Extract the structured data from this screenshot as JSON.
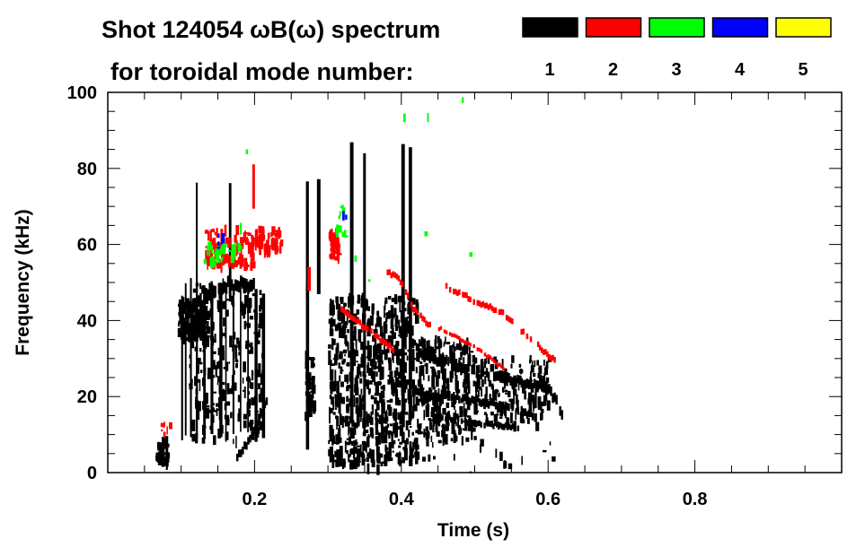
{
  "chart_data": {
    "type": "heatmap",
    "title": "Shot 124054 ωB(ω) spectrum",
    "subtitle": "for toroidal mode number:",
    "xlabel": "Time (s)",
    "ylabel": "Frequency (kHz)",
    "xlim": [
      0,
      1.0
    ],
    "ylim": [
      0,
      100
    ],
    "xticks": [
      0.2,
      0.4,
      0.6,
      0.8
    ],
    "xtick_labels": [
      "0.2",
      "0.4",
      "0.6",
      "0.8"
    ],
    "yticks": [
      0,
      20,
      40,
      60,
      80,
      100
    ],
    "ytick_labels": [
      "0",
      "20",
      "40",
      "60",
      "80",
      "100"
    ],
    "x_minor_step": 0.05,
    "y_minor_step": 5,
    "legend": {
      "placement": "top-right",
      "entries": [
        {
          "label": "1",
          "color": "#000000"
        },
        {
          "label": "2",
          "color": "#ff0000"
        },
        {
          "label": "3",
          "color": "#00ff00"
        },
        {
          "label": "4",
          "color": "#0000ff"
        },
        {
          "label": "5",
          "color": "#ffff00"
        }
      ]
    },
    "features": [
      {
        "mode": 1,
        "type": "blob",
        "t": [
          0.095,
          0.13
        ],
        "f": [
          35,
          45
        ],
        "count": 160
      },
      {
        "mode": 1,
        "type": "blob",
        "t": [
          0.11,
          0.21
        ],
        "f": [
          8,
          50
        ],
        "count": 260
      },
      {
        "mode": 1,
        "type": "spikes",
        "t": [
          0.1,
          0.105,
          0.112,
          0.12,
          0.13,
          0.14,
          0.152,
          0.16,
          0.17,
          0.18,
          0.19,
          0.2,
          0.21
        ],
        "f": [
          8,
          52
        ]
      },
      {
        "mode": 1,
        "type": "trace",
        "points": [
          [
            0.115,
            44
          ],
          [
            0.14,
            48
          ],
          [
            0.17,
            50
          ],
          [
            0.2,
            49
          ]
        ],
        "width": 3
      },
      {
        "mode": 1,
        "type": "trace",
        "points": [
          [
            0.175,
            4
          ],
          [
            0.19,
            8
          ],
          [
            0.205,
            14
          ],
          [
            0.22,
            21
          ]
        ],
        "width": 2
      },
      {
        "mode": 1,
        "type": "blob",
        "t": [
          0.065,
          0.08
        ],
        "f": [
          2,
          8
        ],
        "count": 40
      },
      {
        "mode": 1,
        "type": "spikes",
        "t": [
          0.12,
          0.165,
          0.27,
          0.285
        ],
        "f": [
          45,
          80
        ]
      },
      {
        "mode": 1,
        "type": "blob",
        "t": [
          0.268,
          0.28
        ],
        "f": [
          14,
          31
        ],
        "count": 50
      },
      {
        "mode": 1,
        "type": "spikes",
        "t": [
          0.27
        ],
        "f": [
          5,
          52
        ]
      },
      {
        "mode": 1,
        "type": "blob",
        "t": [
          0.3,
          0.42
        ],
        "f": [
          2,
          46
        ],
        "count": 700
      },
      {
        "mode": 1,
        "type": "blob",
        "t": [
          0.42,
          0.5
        ],
        "f": [
          8,
          35
        ],
        "count": 260
      },
      {
        "mode": 1,
        "type": "blob",
        "t": [
          0.5,
          0.6
        ],
        "f": [
          12,
          30
        ],
        "count": 160
      },
      {
        "mode": 1,
        "type": "spikes",
        "t": [
          0.33,
          0.348,
          0.4,
          0.41
        ],
        "f": [
          10,
          88
        ]
      },
      {
        "mode": 1,
        "type": "trace",
        "points": [
          [
            0.42,
            31
          ],
          [
            0.46,
            29
          ],
          [
            0.5,
            27
          ],
          [
            0.55,
            24
          ],
          [
            0.6,
            22
          ],
          [
            0.62,
            15
          ]
        ],
        "width": 2.5
      },
      {
        "mode": 1,
        "type": "trace",
        "points": [
          [
            0.42,
            21
          ],
          [
            0.46,
            20
          ],
          [
            0.5,
            19
          ],
          [
            0.55,
            17
          ],
          [
            0.58,
            15
          ]
        ],
        "width": 2
      },
      {
        "mode": 1,
        "type": "trace",
        "points": [
          [
            0.44,
            15
          ],
          [
            0.5,
            13
          ],
          [
            0.56,
            12
          ]
        ],
        "width": 1.5
      },
      {
        "mode": 1,
        "type": "blob",
        "t": [
          0.3,
          0.63
        ],
        "f": [
          0,
          8
        ],
        "count": 40
      },
      {
        "mode": 2,
        "type": "blob",
        "t": [
          0.13,
          0.2
        ],
        "f": [
          54,
          64
        ],
        "count": 90
      },
      {
        "mode": 2,
        "type": "blob",
        "t": [
          0.2,
          0.235
        ],
        "f": [
          58,
          64
        ],
        "count": 50
      },
      {
        "mode": 2,
        "type": "spikes",
        "t": [
          0.197
        ],
        "f": [
          68,
          84
        ]
      },
      {
        "mode": 2,
        "type": "blob",
        "t": [
          0.3,
          0.315
        ],
        "f": [
          56,
          63
        ],
        "count": 40
      },
      {
        "mode": 2,
        "type": "spikes",
        "t": [
          0.272
        ],
        "f": [
          45,
          58
        ]
      },
      {
        "mode": 2,
        "type": "trace",
        "points": [
          [
            0.317,
            43
          ],
          [
            0.35,
            38
          ],
          [
            0.39,
            32
          ]
        ],
        "width": 1.5
      },
      {
        "mode": 2,
        "type": "trace",
        "points": [
          [
            0.38,
            53
          ],
          [
            0.4,
            50
          ],
          [
            0.415,
            43
          ],
          [
            0.44,
            38
          ]
        ],
        "width": 1.5
      },
      {
        "mode": 2,
        "type": "trace",
        "points": [
          [
            0.46,
            49
          ],
          [
            0.5,
            45
          ],
          [
            0.537,
            42
          ],
          [
            0.57,
            36
          ],
          [
            0.61,
            29
          ]
        ],
        "width": 1.5
      },
      {
        "mode": 2,
        "type": "trace",
        "points": [
          [
            0.45,
            38
          ],
          [
            0.5,
            33
          ],
          [
            0.54,
            27
          ]
        ],
        "width": 1
      },
      {
        "mode": 2,
        "type": "blob",
        "t": [
          0.07,
          0.085
        ],
        "f": [
          9,
          13
        ],
        "count": 6
      },
      {
        "mode": 3,
        "type": "blob",
        "t": [
          0.13,
          0.18
        ],
        "f": [
          55,
          60
        ],
        "count": 30
      },
      {
        "mode": 3,
        "type": "spikes",
        "t": [
          0.18
        ],
        "f": [
          62,
          68
        ]
      },
      {
        "mode": 3,
        "type": "blob",
        "t": [
          0.31,
          0.325
        ],
        "f": [
          62,
          70
        ],
        "count": 12
      },
      {
        "mode": 3,
        "type": "blob",
        "t": [
          0.13,
          0.56
        ],
        "f": [
          50,
          100
        ],
        "count": 8
      },
      {
        "mode": 4,
        "type": "blob",
        "t": [
          0.14,
          0.165
        ],
        "f": [
          59,
          63
        ],
        "count": 5
      },
      {
        "mode": 4,
        "type": "blob",
        "t": [
          0.318,
          0.324
        ],
        "f": [
          67,
          69
        ],
        "count": 2
      }
    ]
  }
}
